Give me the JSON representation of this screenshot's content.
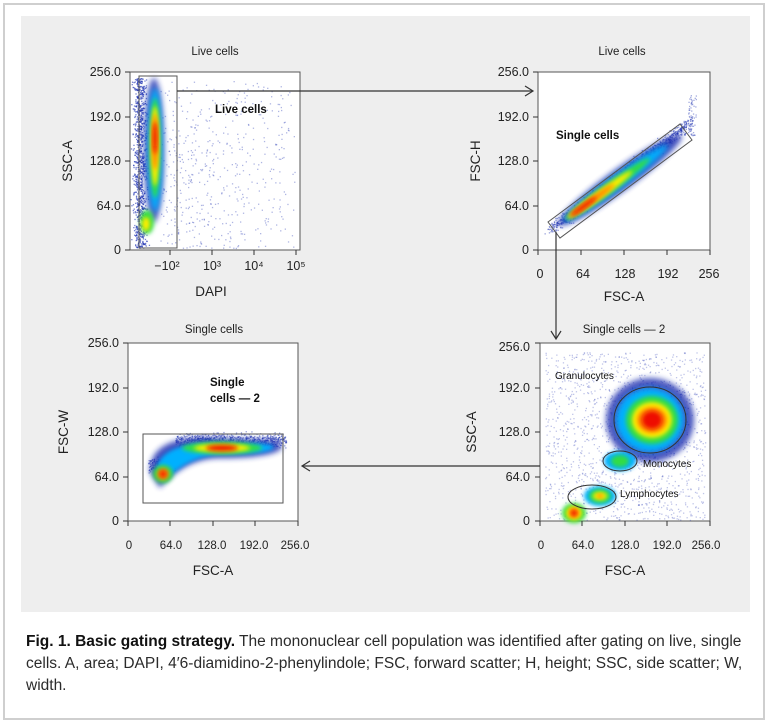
{
  "caption": {
    "lead": "Fig. 1. Basic gating strategy.",
    "text": " The mononuclear cell population was identified after gating on live, single cells. A, area; DAPI, 4′6-diamidino-2-phenylindole; FSC, forward scatter; H, height; SSC, side scatter; W, width."
  },
  "chart_data": [
    {
      "type": "scatter",
      "title": "Live cells",
      "xlabel": "DAPI",
      "ylabel": "SSC-A",
      "xscale": "log (biexponential)",
      "x_ticks": [
        "−10²",
        "10³",
        "10⁴",
        "10⁵"
      ],
      "y_ticks": [
        "0",
        "64.0",
        "128.0",
        "192.0",
        "256.0"
      ],
      "ylim": [
        0,
        256
      ],
      "gates": [
        {
          "name": "Live cells",
          "type": "rectangle"
        }
      ],
      "density_colors": [
        "#1b2fb0",
        "#00b0ff",
        "#33dd44",
        "#ffee00",
        "#ff8800",
        "#ee1100"
      ]
    },
    {
      "type": "scatter",
      "title": "Live cells",
      "xlabel": "FSC-A",
      "ylabel": "FSC-H",
      "x_ticks": [
        "0",
        "64",
        "128",
        "192",
        "256"
      ],
      "y_ticks": [
        "0",
        "64.0",
        "128.0",
        "192.0",
        "256.0"
      ],
      "xlim": [
        0,
        256
      ],
      "ylim": [
        0,
        256
      ],
      "gates": [
        {
          "name": "Single cells",
          "type": "polygon"
        }
      ]
    },
    {
      "type": "scatter",
      "title": "Single cells",
      "xlabel": "FSC-A",
      "ylabel": "FSC-W",
      "x_ticks": [
        "0",
        "64.0",
        "128.0",
        "192.0",
        "256.0"
      ],
      "y_ticks": [
        "0",
        "64.0",
        "128.0",
        "192.0",
        "256.0"
      ],
      "xlim": [
        0,
        256
      ],
      "ylim": [
        0,
        256
      ],
      "gates": [
        {
          "name": "Single cells — 2",
          "type": "rectangle"
        }
      ]
    },
    {
      "type": "scatter",
      "title": "Single cells — 2",
      "xlabel": "FSC-A",
      "ylabel": "SSC-A",
      "x_ticks": [
        "0",
        "64.0",
        "128.0",
        "192.0",
        "256.0"
      ],
      "y_ticks": [
        "0",
        "64.0",
        "128.0",
        "192.0",
        "256.0"
      ],
      "xlim": [
        0,
        256
      ],
      "ylim": [
        0,
        256
      ],
      "gates": [
        {
          "name": "Granulocytes",
          "type": "ellipse"
        },
        {
          "name": "Monocytes",
          "type": "ellipse"
        },
        {
          "name": "Lymphocytes",
          "type": "ellipse"
        }
      ]
    }
  ]
}
